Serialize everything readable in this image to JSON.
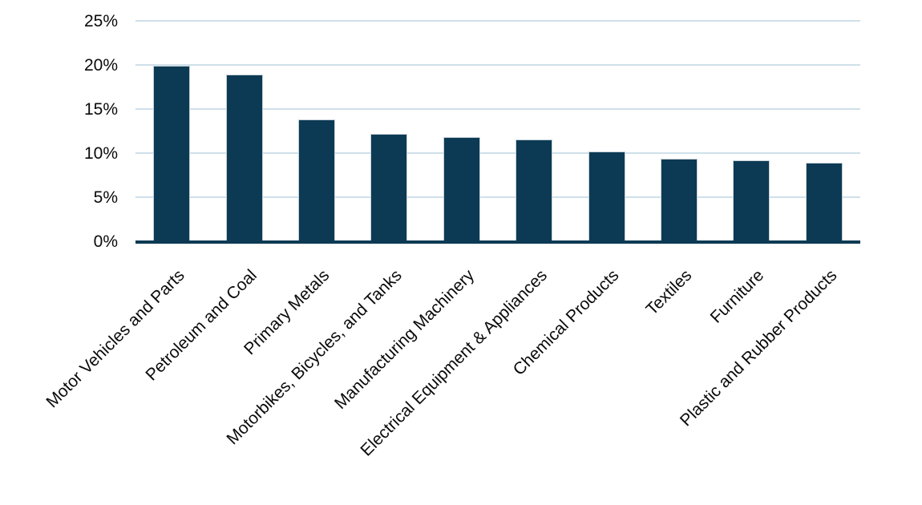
{
  "chart_data": {
    "type": "bar",
    "title": "",
    "xlabel": "",
    "ylabel": "",
    "categories": [
      "Motor Vehicles and Parts",
      "Petroleum and Coal",
      "Primary Metals",
      "Motorbikes, Bicycles, and Tanks",
      "Manufacturing Machinery",
      "Electrical Equipment & Appliances",
      "Chemical Products",
      "Textiles",
      "Furniture",
      "Plastic and Rubber Products"
    ],
    "values": [
      19.9,
      18.9,
      13.8,
      12.2,
      11.8,
      11.5,
      10.2,
      9.4,
      9.2,
      8.9
    ],
    "unit": "%",
    "ylim": [
      0,
      25
    ],
    "yticks": [
      0,
      5,
      10,
      15,
      20,
      25
    ],
    "ytick_labels": [
      "0%",
      "5%",
      "10%",
      "15%",
      "20%",
      "25%"
    ],
    "grid": true,
    "legend": false,
    "bar_label_rotation_deg": -45,
    "colors": {
      "bar_fill": "#0c3a54",
      "bar_stroke": "#c7d0d7",
      "gridline": "#cfe0ea",
      "axis_line": "#0c3a54",
      "text": "#0a0a0a",
      "background": "#ffffff"
    }
  }
}
